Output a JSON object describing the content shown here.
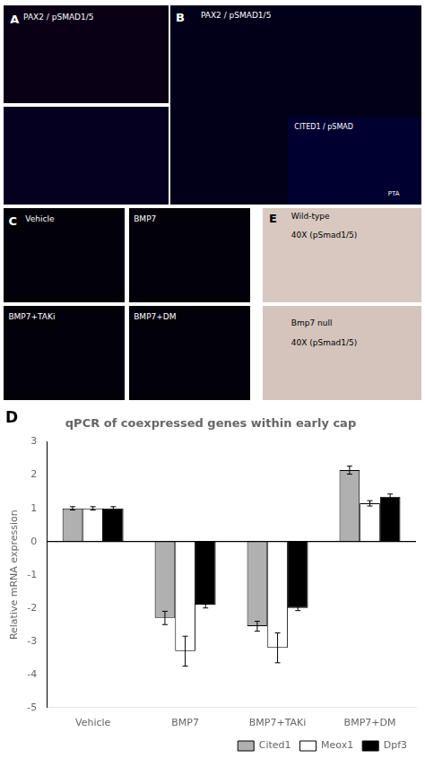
{
  "chart_data": {
    "type": "bar",
    "title": "qPCR of coexpressed genes within early cap",
    "ylabel": "Relative mRNA expression",
    "categories": [
      "Vehicle",
      "BMP7",
      "BMP7+TAKi",
      "BMP7+DM"
    ],
    "series": [
      {
        "name": "Cited1",
        "color": "#b0b0b0",
        "values": [
          1.0,
          -2.3,
          -2.55,
          2.15
        ],
        "errors": [
          0.05,
          0.2,
          0.15,
          0.12
        ]
      },
      {
        "name": "Meox1",
        "color": "#ffffff",
        "values": [
          1.0,
          -3.3,
          -3.2,
          1.15
        ],
        "errors": [
          0.05,
          0.45,
          0.45,
          0.08
        ]
      },
      {
        "name": "Dpf3",
        "color": "#000000",
        "values": [
          1.0,
          -1.9,
          -2.0,
          1.35
        ],
        "errors": [
          0.05,
          0.1,
          0.08,
          0.08
        ]
      }
    ],
    "ylim": [
      -5,
      3
    ],
    "yticks": [
      -5,
      -4,
      -3,
      -2,
      -1,
      0,
      1,
      2,
      3
    ],
    "grid": false,
    "legend": "lower right",
    "annotations": [
      "A",
      "PAX2 / pSMAD1/5",
      "B",
      "PAX2 / pSMAD1/5",
      "CITED1 / pSMAD",
      "PTA",
      "C",
      "Vehicle",
      "BMP7",
      "BMP7+TAKi",
      "BMP7+DM",
      "E",
      "Wild-type",
      "40X (pSmad1/5)",
      "Bmp7 null",
      "40X (pSmad1/5)",
      "D"
    ]
  }
}
